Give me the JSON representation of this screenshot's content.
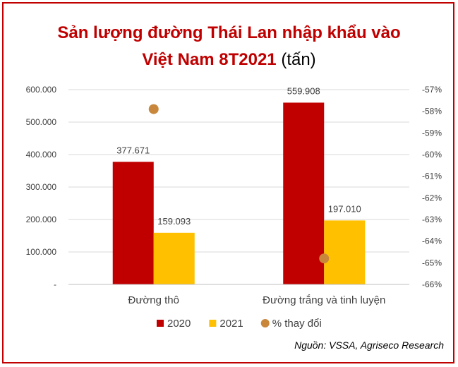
{
  "title_main": "Sản lượng đường Thái Lan nhập khẩu vào",
  "title_line2": "Việt Nam 8T2021",
  "title_unit": "(tấn)",
  "source": "Nguồn: VSSA, Agriseco Research",
  "colors": {
    "frame": "#c00000",
    "series_2020": "#c00000",
    "series_2021": "#ffc000",
    "change_marker": "#c9873c",
    "title": "#c00000"
  },
  "chart_data": {
    "type": "bar",
    "categories": [
      "Đường thô",
      "Đường trắng và tinh luyện"
    ],
    "series": [
      {
        "name": "2020",
        "values": [
          377671,
          559908
        ],
        "labels": [
          "377.671",
          "559.908"
        ]
      },
      {
        "name": "2021",
        "values": [
          159093,
          197010
        ],
        "labels": [
          "159.093",
          "197.010"
        ]
      },
      {
        "name": "% thay đổi",
        "type": "scatter",
        "axis": "secondary",
        "values": [
          -57.9,
          -64.8
        ]
      }
    ],
    "y_axis": {
      "range": [
        0,
        600000
      ],
      "ticks": [
        "-",
        "100.000",
        "200.000",
        "300.000",
        "400.000",
        "500.000",
        "600.000"
      ]
    },
    "y2_axis": {
      "range": [
        -66,
        -57
      ],
      "ticks": [
        "-66%",
        "-65%",
        "-64%",
        "-63%",
        "-62%",
        "-61%",
        "-60%",
        "-59%",
        "-58%",
        "-57%"
      ]
    },
    "grid": true,
    "legend_position": "bottom"
  }
}
